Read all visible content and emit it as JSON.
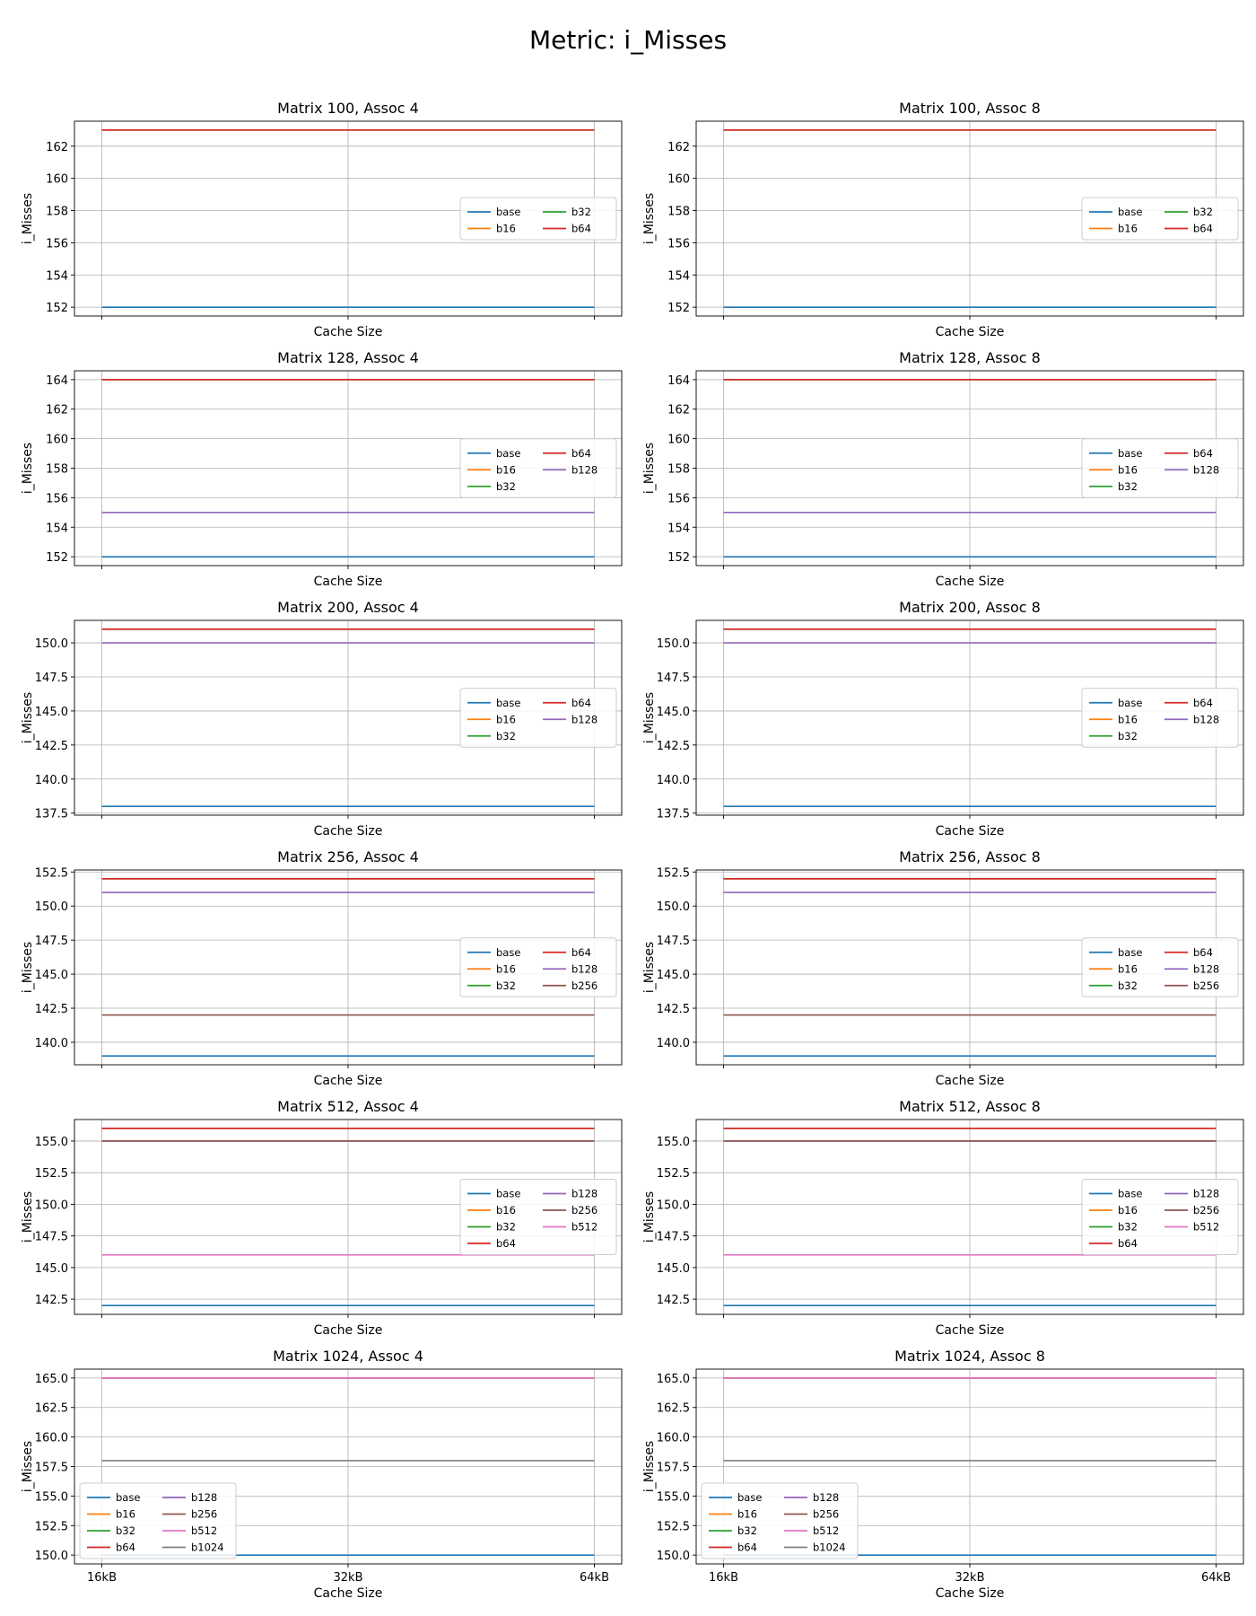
{
  "figure_title": "Metric: i_Misses",
  "colors": {
    "base": "#1f77b4",
    "b16": "#ff7f0e",
    "b32": "#2ca02c",
    "b64": "#d62728",
    "b128": "#9467bd",
    "b256": "#8c564b",
    "b512": "#e377c2",
    "b1024": "#7f7f7f",
    "grid": "#b0b0b0",
    "axis": "#000000"
  },
  "chart_data": [
    {
      "type": "line",
      "title": "Matrix 100, Assoc 4",
      "xlabel": "Cache Size",
      "ylabel": "i_Misses",
      "x": [
        "16kB",
        "32kB",
        "64kB"
      ],
      "show_xticklabels": false,
      "ylim": [
        151.45,
        163.55
      ],
      "yticks": [
        "152",
        "154",
        "156",
        "158",
        "160",
        "162"
      ],
      "ytick_values": [
        152,
        154,
        156,
        158,
        160,
        162
      ],
      "grid": true,
      "legend": {
        "position": "center-right",
        "ncol": 2
      },
      "series": [
        {
          "name": "base",
          "values": [
            152,
            152,
            152
          ]
        },
        {
          "name": "b16",
          "values": [
            163,
            163,
            163
          ]
        },
        {
          "name": "b32",
          "values": [
            163,
            163,
            163
          ]
        },
        {
          "name": "b64",
          "values": [
            163,
            163,
            163
          ]
        }
      ]
    },
    {
      "type": "line",
      "title": "Matrix 100, Assoc 8",
      "xlabel": "Cache Size",
      "ylabel": "i_Misses",
      "x": [
        "16kB",
        "32kB",
        "64kB"
      ],
      "show_xticklabels": false,
      "ylim": [
        151.45,
        163.55
      ],
      "yticks": [
        "152",
        "154",
        "156",
        "158",
        "160",
        "162"
      ],
      "ytick_values": [
        152,
        154,
        156,
        158,
        160,
        162
      ],
      "grid": true,
      "legend": {
        "position": "center-right",
        "ncol": 2
      },
      "series": [
        {
          "name": "base",
          "values": [
            152,
            152,
            152
          ]
        },
        {
          "name": "b16",
          "values": [
            163,
            163,
            163
          ]
        },
        {
          "name": "b32",
          "values": [
            163,
            163,
            163
          ]
        },
        {
          "name": "b64",
          "values": [
            163,
            163,
            163
          ]
        }
      ]
    },
    {
      "type": "line",
      "title": "Matrix 128, Assoc 4",
      "xlabel": "Cache Size",
      "ylabel": "i_Misses",
      "x": [
        "16kB",
        "32kB",
        "64kB"
      ],
      "show_xticklabels": false,
      "ylim": [
        151.4,
        164.6
      ],
      "yticks": [
        "152",
        "154",
        "156",
        "158",
        "160",
        "162",
        "164"
      ],
      "ytick_values": [
        152,
        154,
        156,
        158,
        160,
        162,
        164
      ],
      "grid": true,
      "legend": {
        "position": "center-right",
        "ncol": 2
      },
      "series": [
        {
          "name": "base",
          "values": [
            152,
            152,
            152
          ]
        },
        {
          "name": "b16",
          "values": [
            164,
            164,
            164
          ]
        },
        {
          "name": "b32",
          "values": [
            164,
            164,
            164
          ]
        },
        {
          "name": "b64",
          "values": [
            164,
            164,
            164
          ]
        },
        {
          "name": "b128",
          "values": [
            155,
            155,
            155
          ]
        }
      ]
    },
    {
      "type": "line",
      "title": "Matrix 128, Assoc 8",
      "xlabel": "Cache Size",
      "ylabel": "i_Misses",
      "x": [
        "16kB",
        "32kB",
        "64kB"
      ],
      "show_xticklabels": false,
      "ylim": [
        151.4,
        164.6
      ],
      "yticks": [
        "152",
        "154",
        "156",
        "158",
        "160",
        "162",
        "164"
      ],
      "ytick_values": [
        152,
        154,
        156,
        158,
        160,
        162,
        164
      ],
      "grid": true,
      "legend": {
        "position": "center-right",
        "ncol": 2
      },
      "series": [
        {
          "name": "base",
          "values": [
            152,
            152,
            152
          ]
        },
        {
          "name": "b16",
          "values": [
            164,
            164,
            164
          ]
        },
        {
          "name": "b32",
          "values": [
            164,
            164,
            164
          ]
        },
        {
          "name": "b64",
          "values": [
            164,
            164,
            164
          ]
        },
        {
          "name": "b128",
          "values": [
            155,
            155,
            155
          ]
        }
      ]
    },
    {
      "type": "line",
      "title": "Matrix 200, Assoc 4",
      "xlabel": "Cache Size",
      "ylabel": "i_Misses",
      "x": [
        "16kB",
        "32kB",
        "64kB"
      ],
      "show_xticklabels": false,
      "ylim": [
        137.35,
        151.65
      ],
      "yticks": [
        "137.5",
        "140.0",
        "142.5",
        "145.0",
        "147.5",
        "150.0"
      ],
      "ytick_values": [
        137.5,
        140,
        142.5,
        145,
        147.5,
        150
      ],
      "grid": true,
      "legend": {
        "position": "center-right",
        "ncol": 2
      },
      "series": [
        {
          "name": "base",
          "values": [
            138,
            138,
            138
          ]
        },
        {
          "name": "b16",
          "values": [
            151,
            151,
            151
          ]
        },
        {
          "name": "b32",
          "values": [
            151,
            151,
            151
          ]
        },
        {
          "name": "b64",
          "values": [
            151,
            151,
            151
          ]
        },
        {
          "name": "b128",
          "values": [
            150,
            150,
            150
          ]
        }
      ]
    },
    {
      "type": "line",
      "title": "Matrix 200, Assoc 8",
      "xlabel": "Cache Size",
      "ylabel": "i_Misses",
      "x": [
        "16kB",
        "32kB",
        "64kB"
      ],
      "show_xticklabels": false,
      "ylim": [
        137.35,
        151.65
      ],
      "yticks": [
        "137.5",
        "140.0",
        "142.5",
        "145.0",
        "147.5",
        "150.0"
      ],
      "ytick_values": [
        137.5,
        140,
        142.5,
        145,
        147.5,
        150
      ],
      "grid": true,
      "legend": {
        "position": "center-right",
        "ncol": 2
      },
      "series": [
        {
          "name": "base",
          "values": [
            138,
            138,
            138
          ]
        },
        {
          "name": "b16",
          "values": [
            151,
            151,
            151
          ]
        },
        {
          "name": "b32",
          "values": [
            151,
            151,
            151
          ]
        },
        {
          "name": "b64",
          "values": [
            151,
            151,
            151
          ]
        },
        {
          "name": "b128",
          "values": [
            150,
            150,
            150
          ]
        }
      ]
    },
    {
      "type": "line",
      "title": "Matrix 256, Assoc 4",
      "xlabel": "Cache Size",
      "ylabel": "i_Misses",
      "x": [
        "16kB",
        "32kB",
        "64kB"
      ],
      "show_xticklabels": false,
      "ylim": [
        138.35,
        152.65
      ],
      "yticks": [
        "140.0",
        "142.5",
        "145.0",
        "147.5",
        "150.0",
        "152.5"
      ],
      "ytick_values": [
        140,
        142.5,
        145,
        147.5,
        150,
        152.5
      ],
      "grid": true,
      "legend": {
        "position": "center-right",
        "ncol": 2
      },
      "series": [
        {
          "name": "base",
          "values": [
            139,
            139,
            139
          ]
        },
        {
          "name": "b16",
          "values": [
            152,
            152,
            152
          ]
        },
        {
          "name": "b32",
          "values": [
            152,
            152,
            152
          ]
        },
        {
          "name": "b64",
          "values": [
            152,
            152,
            152
          ]
        },
        {
          "name": "b128",
          "values": [
            151,
            151,
            151
          ]
        },
        {
          "name": "b256",
          "values": [
            142,
            142,
            142
          ]
        }
      ]
    },
    {
      "type": "line",
      "title": "Matrix 256, Assoc 8",
      "xlabel": "Cache Size",
      "ylabel": "i_Misses",
      "x": [
        "16kB",
        "32kB",
        "64kB"
      ],
      "show_xticklabels": false,
      "ylim": [
        138.35,
        152.65
      ],
      "yticks": [
        "140.0",
        "142.5",
        "145.0",
        "147.5",
        "150.0",
        "152.5"
      ],
      "ytick_values": [
        140,
        142.5,
        145,
        147.5,
        150,
        152.5
      ],
      "grid": true,
      "legend": {
        "position": "center-right",
        "ncol": 2
      },
      "series": [
        {
          "name": "base",
          "values": [
            139,
            139,
            139
          ]
        },
        {
          "name": "b16",
          "values": [
            152,
            152,
            152
          ]
        },
        {
          "name": "b32",
          "values": [
            152,
            152,
            152
          ]
        },
        {
          "name": "b64",
          "values": [
            152,
            152,
            152
          ]
        },
        {
          "name": "b128",
          "values": [
            151,
            151,
            151
          ]
        },
        {
          "name": "b256",
          "values": [
            142,
            142,
            142
          ]
        }
      ]
    },
    {
      "type": "line",
      "title": "Matrix 512, Assoc 4",
      "xlabel": "Cache Size",
      "ylabel": "i_Misses",
      "x": [
        "16kB",
        "32kB",
        "64kB"
      ],
      "show_xticklabels": false,
      "ylim": [
        141.3,
        156.7
      ],
      "yticks": [
        "142.5",
        "145.0",
        "147.5",
        "150.0",
        "152.5",
        "155.0"
      ],
      "ytick_values": [
        142.5,
        145,
        147.5,
        150,
        152.5,
        155
      ],
      "grid": true,
      "legend": {
        "position": "center-right",
        "ncol": 2
      },
      "series": [
        {
          "name": "base",
          "values": [
            142,
            142,
            142
          ]
        },
        {
          "name": "b16",
          "values": [
            156,
            156,
            156
          ]
        },
        {
          "name": "b32",
          "values": [
            156,
            156,
            156
          ]
        },
        {
          "name": "b64",
          "values": [
            156,
            156,
            156
          ]
        },
        {
          "name": "b128",
          "values": [
            155,
            155,
            155
          ]
        },
        {
          "name": "b256",
          "values": [
            155,
            155,
            155
          ]
        },
        {
          "name": "b512",
          "values": [
            146,
            146,
            146
          ]
        }
      ]
    },
    {
      "type": "line",
      "title": "Matrix 512, Assoc 8",
      "xlabel": "Cache Size",
      "ylabel": "i_Misses",
      "x": [
        "16kB",
        "32kB",
        "64kB"
      ],
      "show_xticklabels": false,
      "ylim": [
        141.3,
        156.7
      ],
      "yticks": [
        "142.5",
        "145.0",
        "147.5",
        "150.0",
        "152.5",
        "155.0"
      ],
      "ytick_values": [
        142.5,
        145,
        147.5,
        150,
        152.5,
        155
      ],
      "grid": true,
      "legend": {
        "position": "center-right",
        "ncol": 2
      },
      "series": [
        {
          "name": "base",
          "values": [
            142,
            142,
            142
          ]
        },
        {
          "name": "b16",
          "values": [
            156,
            156,
            156
          ]
        },
        {
          "name": "b32",
          "values": [
            156,
            156,
            156
          ]
        },
        {
          "name": "b64",
          "values": [
            156,
            156,
            156
          ]
        },
        {
          "name": "b128",
          "values": [
            155,
            155,
            155
          ]
        },
        {
          "name": "b256",
          "values": [
            155,
            155,
            155
          ]
        },
        {
          "name": "b512",
          "values": [
            146,
            146,
            146
          ]
        }
      ]
    },
    {
      "type": "line",
      "title": "Matrix 1024, Assoc 4",
      "xlabel": "Cache Size",
      "ylabel": "i_Misses",
      "x": [
        "16kB",
        "32kB",
        "64kB"
      ],
      "show_xticklabels": true,
      "ylim": [
        149.25,
        165.75
      ],
      "yticks": [
        "150.0",
        "152.5",
        "155.0",
        "157.5",
        "160.0",
        "162.5",
        "165.0"
      ],
      "ytick_values": [
        150,
        152.5,
        155,
        157.5,
        160,
        162.5,
        165
      ],
      "grid": true,
      "legend": {
        "position": "lower-left",
        "ncol": 2
      },
      "series": [
        {
          "name": "base",
          "values": [
            150,
            150,
            150
          ]
        },
        {
          "name": "b16",
          "values": [
            165,
            165,
            165
          ]
        },
        {
          "name": "b32",
          "values": [
            165,
            165,
            165
          ]
        },
        {
          "name": "b64",
          "values": [
            165,
            165,
            165
          ]
        },
        {
          "name": "b128",
          "values": [
            165,
            165,
            165
          ]
        },
        {
          "name": "b256",
          "values": [
            165,
            165,
            165
          ]
        },
        {
          "name": "b512",
          "values": [
            165,
            165,
            165
          ]
        },
        {
          "name": "b1024",
          "values": [
            158,
            158,
            158
          ]
        }
      ]
    },
    {
      "type": "line",
      "title": "Matrix 1024, Assoc 8",
      "xlabel": "Cache Size",
      "ylabel": "i_Misses",
      "x": [
        "16kB",
        "32kB",
        "64kB"
      ],
      "show_xticklabels": true,
      "ylim": [
        149.25,
        165.75
      ],
      "yticks": [
        "150.0",
        "152.5",
        "155.0",
        "157.5",
        "160.0",
        "162.5",
        "165.0"
      ],
      "ytick_values": [
        150,
        152.5,
        155,
        157.5,
        160,
        162.5,
        165
      ],
      "grid": true,
      "legend": {
        "position": "lower-left",
        "ncol": 2
      },
      "series": [
        {
          "name": "base",
          "values": [
            150,
            150,
            150
          ]
        },
        {
          "name": "b16",
          "values": [
            165,
            165,
            165
          ]
        },
        {
          "name": "b32",
          "values": [
            165,
            165,
            165
          ]
        },
        {
          "name": "b64",
          "values": [
            165,
            165,
            165
          ]
        },
        {
          "name": "b128",
          "values": [
            165,
            165,
            165
          ]
        },
        {
          "name": "b256",
          "values": [
            165,
            165,
            165
          ]
        },
        {
          "name": "b512",
          "values": [
            165,
            165,
            165
          ]
        },
        {
          "name": "b1024",
          "values": [
            158,
            158,
            158
          ]
        }
      ]
    }
  ]
}
